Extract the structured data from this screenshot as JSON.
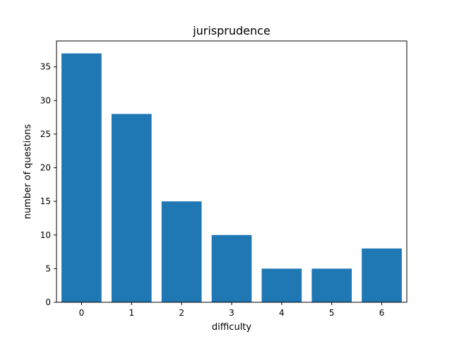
{
  "chart_data": {
    "type": "bar",
    "title": "jurisprudence",
    "xlabel": "difficulty",
    "ylabel": "number of questions",
    "categories": [
      "0",
      "1",
      "2",
      "3",
      "4",
      "5",
      "6"
    ],
    "values": [
      37,
      28,
      15,
      10,
      5,
      5,
      8
    ],
    "xlim": [
      -0.5,
      6.5
    ],
    "ylim": [
      0,
      38.85
    ],
    "yticks": [
      0,
      5,
      10,
      15,
      20,
      25,
      30,
      35
    ],
    "bar_color": "#1f77b4",
    "grid": false
  }
}
